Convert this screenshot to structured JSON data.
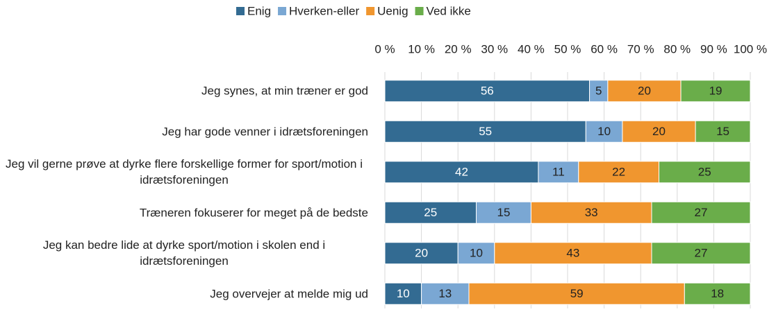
{
  "chart_data": {
    "type": "stacked_barh",
    "categories": [
      "Jeg synes, at min træner er god",
      "Jeg har gode venner i idrætsforeningen",
      "Jeg vil gerne prøve at dyrke flere forskellige former for sport/motion i idrætsforeningen",
      "Træneren fokuserer for meget på de bedste",
      "Jeg kan bedre lide at dyrke sport/motion i skolen end i idrætsforeningen",
      "Jeg overvejer at melde mig ud"
    ],
    "series": [
      {
        "name": "Enig",
        "color": "#336b92",
        "values": [
          56,
          55,
          42,
          25,
          20,
          10
        ]
      },
      {
        "name": "Hverken-eller",
        "color": "#7aa7d3",
        "values": [
          5,
          10,
          11,
          15,
          10,
          13
        ]
      },
      {
        "name": "Uenig",
        "color": "#f0962f",
        "values": [
          20,
          20,
          22,
          33,
          43,
          59
        ]
      },
      {
        "name": "Ved ikke",
        "color": "#6aad4a",
        "values": [
          19,
          15,
          25,
          27,
          27,
          18
        ]
      }
    ],
    "xlim": [
      0,
      100
    ],
    "xticks": [
      {
        "value": 0,
        "label": "0 %"
      },
      {
        "value": 10,
        "label": "10 %"
      },
      {
        "value": 20,
        "label": "20 %"
      },
      {
        "value": 30,
        "label": "30 %"
      },
      {
        "value": 40,
        "label": "40 %"
      },
      {
        "value": 50,
        "label": "50 %"
      },
      {
        "value": 60,
        "label": "60 %"
      },
      {
        "value": 70,
        "label": "70 %"
      },
      {
        "value": 80,
        "label": "80 %"
      },
      {
        "value": 90,
        "label": "90 %"
      },
      {
        "value": 100,
        "label": "100 %"
      }
    ],
    "grid": true,
    "legend": "top"
  }
}
